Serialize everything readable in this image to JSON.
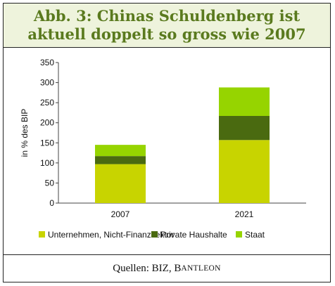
{
  "title": {
    "line1": "Abb. 3: Chinas Schuldenberg ist",
    "line2": "aktuell doppelt so gross wie 2007"
  },
  "footer": {
    "prefix": "Quellen: BIZ, ",
    "brand_first": "B",
    "brand_rest": "ANTLEON"
  },
  "chart_data": {
    "type": "bar",
    "stacked": true,
    "categories": [
      "2007",
      "2021"
    ],
    "series": [
      {
        "name": "Unternehmen, Nicht-Finanzsektor",
        "values": [
          97,
          157
        ],
        "color": "#c8d400"
      },
      {
        "name": "Private Haushalte",
        "values": [
          20,
          60
        ],
        "color": "#4a6a10"
      },
      {
        "name": "Staat",
        "values": [
          28,
          71
        ],
        "color": "#96d400"
      }
    ],
    "ylabel": "in % des BIP",
    "ylim": [
      0,
      350
    ],
    "yticks": [
      0,
      50,
      100,
      150,
      200,
      250,
      300,
      350
    ],
    "grid": false,
    "legend_position": "bottom"
  }
}
